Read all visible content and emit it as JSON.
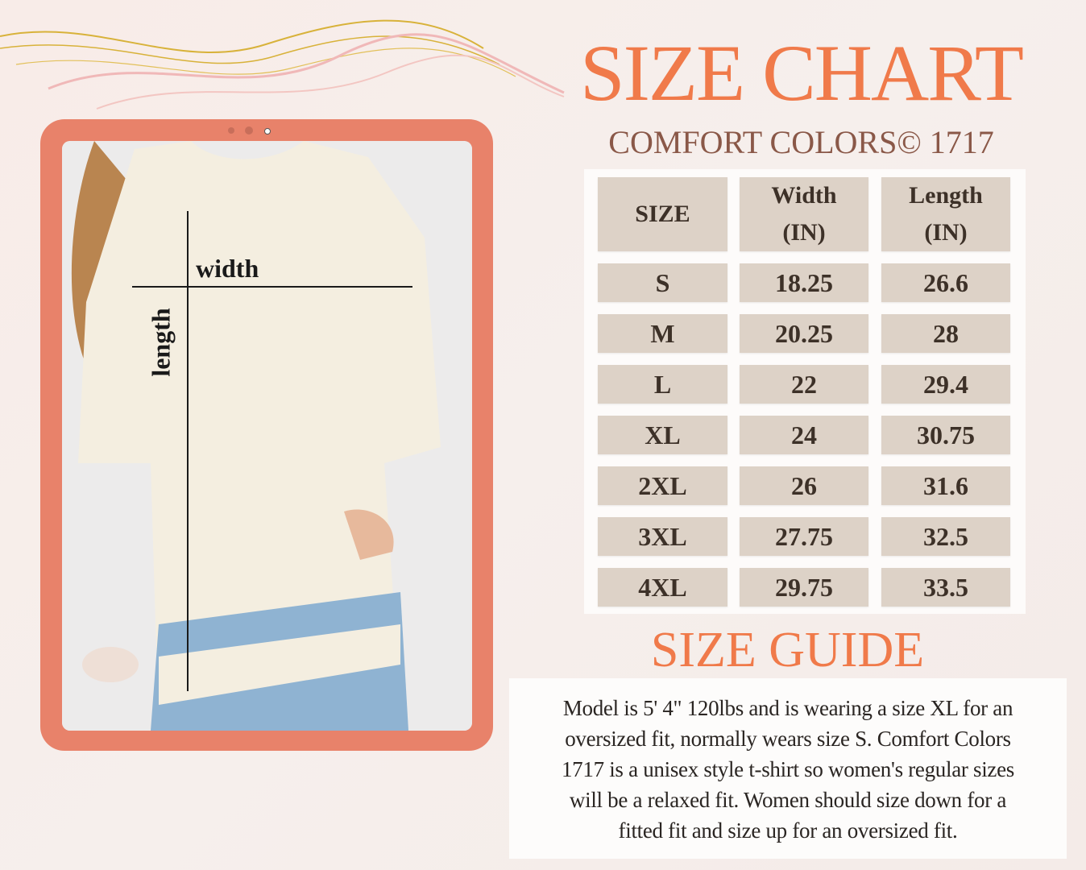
{
  "header": {
    "title": "SIZE CHART",
    "subtitle": "COMFORT COLORS© 1717"
  },
  "figure": {
    "width_label": "width",
    "length_label": "length"
  },
  "table": {
    "columns": [
      {
        "label": "SIZE"
      },
      {
        "label": "Width",
        "unit": "(IN)"
      },
      {
        "label": "Length",
        "unit": "(IN)"
      }
    ],
    "rows": [
      [
        "S",
        "18.25",
        "26.6"
      ],
      [
        "M",
        "20.25",
        "28"
      ],
      [
        "L",
        "22",
        "29.4"
      ],
      [
        "XL",
        "24",
        "30.75"
      ],
      [
        "2XL",
        "26",
        "31.6"
      ],
      [
        "3XL",
        "27.75",
        "32.5"
      ],
      [
        "4XL",
        "29.75",
        "33.5"
      ]
    ]
  },
  "guide": {
    "title": "SIZE GUIDE",
    "lines": [
      "Model is 5' 4\" 120lbs and is wearing a size XL for an",
      "oversized fit, normally wears size S.  Comfort Colors",
      "1717 is a unisex style t-shirt so women's regular sizes",
      "will be a relaxed fit. Women should size down for a",
      "fitted fit and size up for an oversized fit."
    ]
  },
  "colors": {
    "accent": "#f07a4a",
    "frame": "#e8826a",
    "cell": "#ddd2c7",
    "subtitle": "#8a5848"
  }
}
